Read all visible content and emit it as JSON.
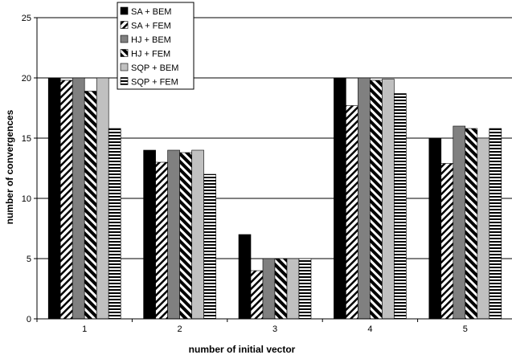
{
  "chart_data": {
    "type": "bar",
    "title": "",
    "xlabel": "number of initial vector",
    "ylabel": "number of convergences",
    "categories": [
      "1",
      "2",
      "3",
      "4",
      "5"
    ],
    "ylim": [
      0,
      25
    ],
    "yticks": [
      0,
      5,
      10,
      15,
      20,
      25
    ],
    "grid": "horizontal",
    "legend_position": "top-left",
    "series": [
      {
        "name": "SA + BEM",
        "pattern": "solid-black",
        "values": [
          20,
          14,
          7,
          20,
          15
        ]
      },
      {
        "name": "SA + FEM",
        "pattern": "diagonal-light",
        "values": [
          19.8,
          13,
          4,
          17.7,
          12.9
        ]
      },
      {
        "name": "HJ + BEM",
        "pattern": "solid-gray",
        "values": [
          20,
          14,
          5,
          20,
          16
        ]
      },
      {
        "name": "HJ + FEM",
        "pattern": "diagonal-heavy",
        "values": [
          18.9,
          13.8,
          5,
          19.8,
          15.8
        ]
      },
      {
        "name": "SQP + BEM",
        "pattern": "solid-lightgray",
        "values": [
          20,
          14,
          5,
          19.9,
          15
        ]
      },
      {
        "name": "SQP + FEM",
        "pattern": "horizontal-stripe",
        "values": [
          15.8,
          12,
          5,
          18.7,
          15.8
        ]
      }
    ]
  }
}
